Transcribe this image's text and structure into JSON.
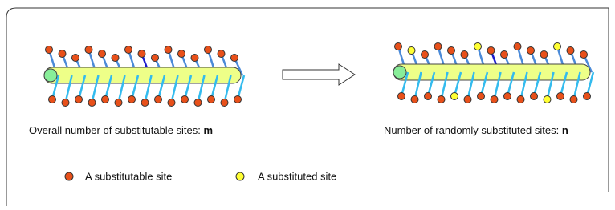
{
  "captions": {
    "left": {
      "text": "Overall number of substitutable sites: ",
      "symbol": "m"
    },
    "right": {
      "text": "Number of randomly substituted sites: ",
      "symbol": "n"
    }
  },
  "legend": {
    "items": [
      {
        "label": "A substitutable site"
      },
      {
        "label": "A substituted site"
      }
    ]
  }
}
